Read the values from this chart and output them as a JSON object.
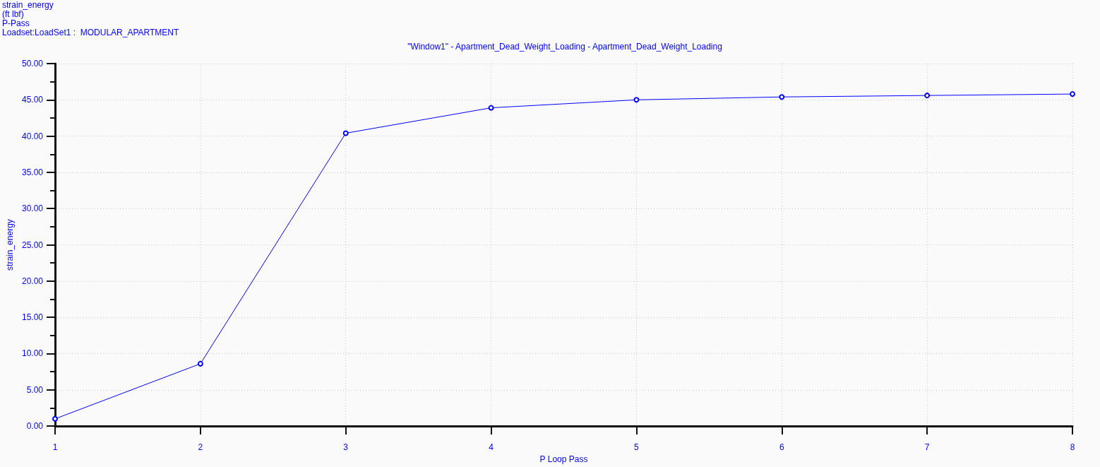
{
  "chart_data": {
    "type": "line",
    "title": "\"Window1\" - Apartment_Dead_Weight_Loading - Apartment_Dead_Weight_Loading",
    "annotations": [
      "strain_energy",
      "(ft lbf)",
      "P-Pass",
      "Loadset:LoadSet1 :  MODULAR_APARTMENT"
    ],
    "xlabel": "P Loop Pass",
    "ylabel": "strain_energy",
    "x": [
      1,
      2,
      3,
      4,
      5,
      6,
      7,
      8
    ],
    "series": [
      {
        "color": "#0000ff",
        "values": [
          1.0,
          8.6,
          40.4,
          43.9,
          45.0,
          45.4,
          45.6,
          45.8
        ]
      }
    ],
    "xlim": [
      1,
      8
    ],
    "xticks": [
      1,
      2,
      3,
      4,
      5,
      6,
      7,
      8
    ],
    "ylim": [
      0,
      50
    ],
    "yticks": [
      {
        "value": 0,
        "label": "0.00"
      },
      {
        "value": 2.5,
        "label": null
      },
      {
        "value": 5,
        "label": "5.00"
      },
      {
        "value": 7.5,
        "label": null
      },
      {
        "value": 10,
        "label": "10.00"
      },
      {
        "value": 12.5,
        "label": null
      },
      {
        "value": 15,
        "label": "15.00"
      },
      {
        "value": 17.5,
        "label": null
      },
      {
        "value": 20,
        "label": "20.00"
      },
      {
        "value": 22.5,
        "label": null
      },
      {
        "value": 25,
        "label": "25.00"
      },
      {
        "value": 27.5,
        "label": null
      },
      {
        "value": 30,
        "label": "30.00"
      },
      {
        "value": 32.5,
        "label": null
      },
      {
        "value": 35,
        "label": "35.00"
      },
      {
        "value": 37.5,
        "label": null
      },
      {
        "value": 40,
        "label": "40.00"
      },
      {
        "value": 42.5,
        "label": null
      },
      {
        "value": 45,
        "label": "45.00"
      },
      {
        "value": 47.5,
        "label": null
      },
      {
        "value": 50,
        "label": "50.00"
      }
    ],
    "grid": true,
    "marker": "circle",
    "line_style": "solid"
  }
}
